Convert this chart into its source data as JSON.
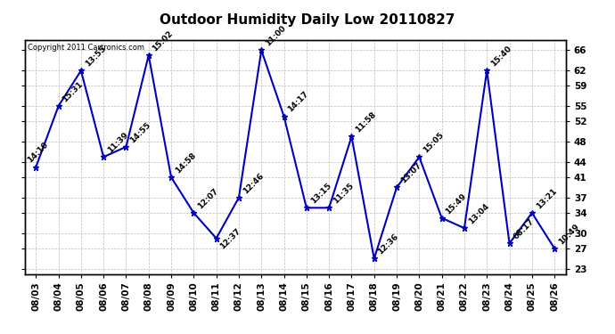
{
  "title": "Outdoor Humidity Daily Low 20110827",
  "copyright": "Copyright 2011 Cartronics.com",
  "dates": [
    "08/03",
    "08/04",
    "08/05",
    "08/06",
    "08/07",
    "08/08",
    "08/09",
    "08/10",
    "08/11",
    "08/12",
    "08/13",
    "08/14",
    "08/15",
    "08/16",
    "08/17",
    "08/18",
    "08/19",
    "08/20",
    "08/21",
    "08/22",
    "08/23",
    "08/24",
    "08/25",
    "08/26"
  ],
  "values": [
    43,
    55,
    62,
    45,
    47,
    65,
    41,
    34,
    29,
    37,
    66,
    53,
    35,
    35,
    49,
    25,
    39,
    45,
    33,
    31,
    62,
    28,
    34,
    27
  ],
  "labels": [
    "14:10",
    "15:31",
    "13:55",
    "11:39",
    "14:55",
    "15:02",
    "14:58",
    "12:07",
    "12:37",
    "12:46",
    "11:00",
    "14:17",
    "13:15",
    "11:35",
    "11:58",
    "12:36",
    "13:07",
    "15:05",
    "15:49",
    "13:04",
    "15:40",
    "08:17",
    "13:21",
    "10:49"
  ],
  "ylim": [
    22,
    68
  ],
  "yticks": [
    23,
    27,
    30,
    34,
    37,
    41,
    44,
    48,
    52,
    55,
    59,
    62,
    66
  ],
  "line_color": "#0000bb",
  "bg_color": "#ffffff",
  "grid_color": "#bbbbbb",
  "title_fontsize": 11,
  "label_fontsize": 6.5,
  "tick_fontsize": 7.5
}
